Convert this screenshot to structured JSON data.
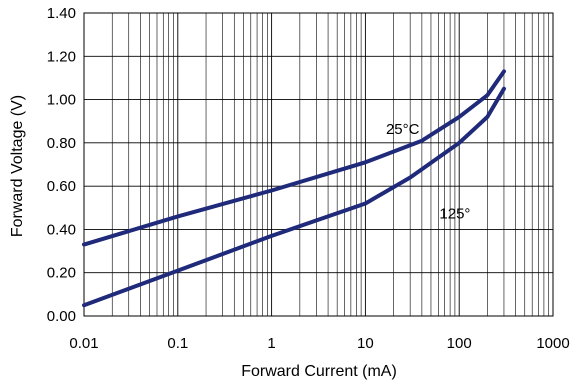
{
  "chart_data": {
    "type": "line",
    "title": "",
    "xlabel": "Forward Current (mA)",
    "ylabel": "Forward Voltage (V)",
    "x_scale": "log",
    "xlim": [
      0.01,
      1000
    ],
    "ylim": [
      0.0,
      1.4
    ],
    "grid": true,
    "x_ticks": [
      0.01,
      0.1,
      1,
      10,
      100,
      1000
    ],
    "x_tick_labels": [
      "0.01",
      "0.1",
      "1",
      "10",
      "100",
      "1000"
    ],
    "y_ticks": [
      0.0,
      0.2,
      0.4,
      0.6,
      0.8,
      1.0,
      1.2,
      1.4
    ],
    "y_tick_labels": [
      "0.00",
      "0.20",
      "0.40",
      "0.60",
      "0.80",
      "1.00",
      "1.20",
      "1.40"
    ],
    "series": [
      {
        "name": "25°C",
        "x": [
          0.01,
          0.1,
          1,
          10,
          40,
          100,
          200,
          300
        ],
        "y": [
          0.33,
          0.46,
          0.58,
          0.71,
          0.81,
          0.92,
          1.02,
          1.13
        ]
      },
      {
        "name": "125°",
        "x": [
          0.01,
          0.1,
          1,
          10,
          30,
          100,
          200,
          300
        ],
        "y": [
          0.05,
          0.21,
          0.37,
          0.52,
          0.64,
          0.8,
          0.92,
          1.05
        ]
      }
    ],
    "annotations": [
      {
        "text": "25°C",
        "x": 25,
        "y": 0.84
      },
      {
        "text": "125°",
        "x": 90,
        "y": 0.45
      }
    ],
    "line_color": "#1f2a7a",
    "grid_color": "#000000"
  }
}
